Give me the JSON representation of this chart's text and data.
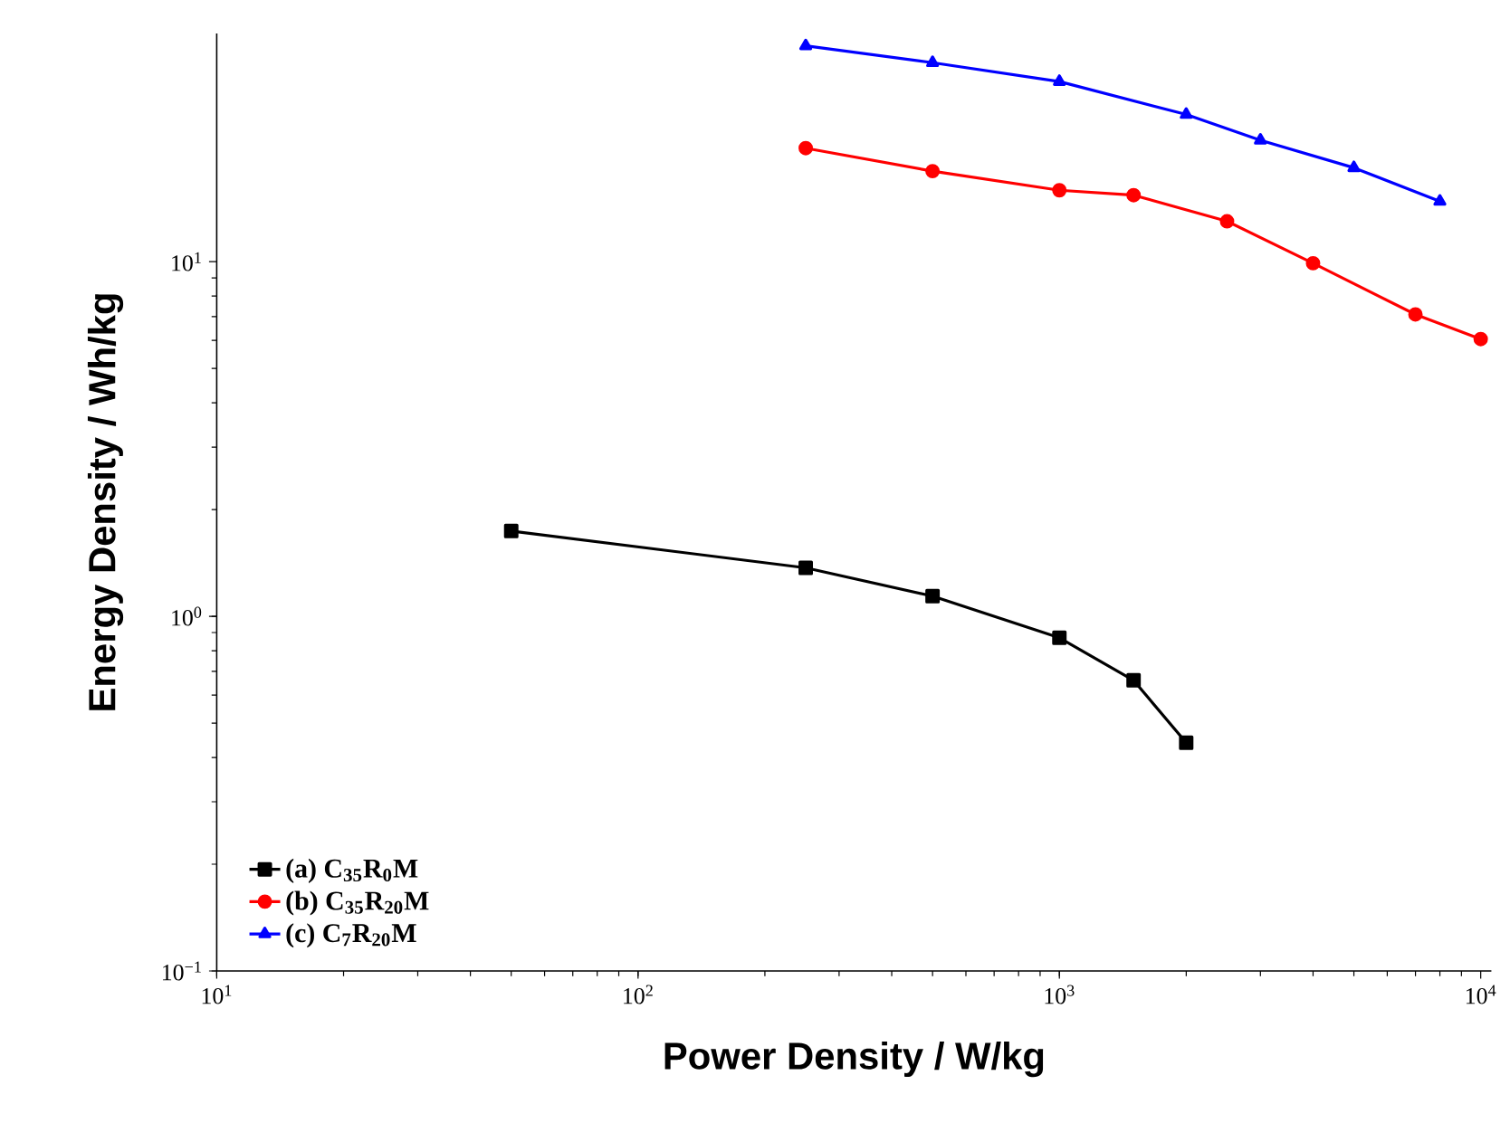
{
  "chart_data": {
    "type": "line",
    "xlabel": "Power Density / W/kg",
    "ylabel": "Energy Density / Wh/kg",
    "log": "xy",
    "xlim": [
      10,
      10600
    ],
    "ylim": [
      0.1,
      44
    ],
    "xticks": [
      {
        "value": 10,
        "label": "10$^{1}$"
      },
      {
        "value": 100,
        "label": "10$^{2}$"
      },
      {
        "value": 1000,
        "label": "10$^{3}$"
      },
      {
        "value": 10000,
        "label": "10$^{4}$"
      }
    ],
    "yticks": [
      {
        "value": 0.1,
        "label": "10$^{−1}$"
      },
      {
        "value": 1,
        "label": "10$^{0}$"
      },
      {
        "value": 10,
        "label": "10$^{1}$"
      }
    ],
    "grid": false,
    "legend": "bottom left",
    "line_style": "solid",
    "series": [
      {
        "name": "(a) C$_{35}$R$_{0}$M",
        "color": "#000000",
        "marker": "square",
        "x": [
          50,
          250,
          500,
          1000,
          1500,
          2000
        ],
        "values": [
          1.74,
          1.37,
          1.14,
          0.87,
          0.66,
          0.44
        ]
      },
      {
        "name": "(b) C$_{35}$R$_{20}$M",
        "color": "#ff0000",
        "marker": "circle",
        "x": [
          250,
          500,
          1000,
          1500,
          2500,
          4000,
          7000,
          10000
        ],
        "values": [
          20.9,
          18.0,
          15.9,
          15.4,
          13.0,
          9.9,
          7.1,
          6.05
        ]
      },
      {
        "name": "(c) C$_{7}$R$_{20}$M",
        "color": "#0000ff",
        "marker": "triangle",
        "x": [
          250,
          500,
          1000,
          2000,
          3000,
          5000,
          8000
        ],
        "values": [
          40.6,
          36.4,
          32.2,
          26.0,
          22.0,
          18.4,
          14.8
        ]
      }
    ]
  }
}
